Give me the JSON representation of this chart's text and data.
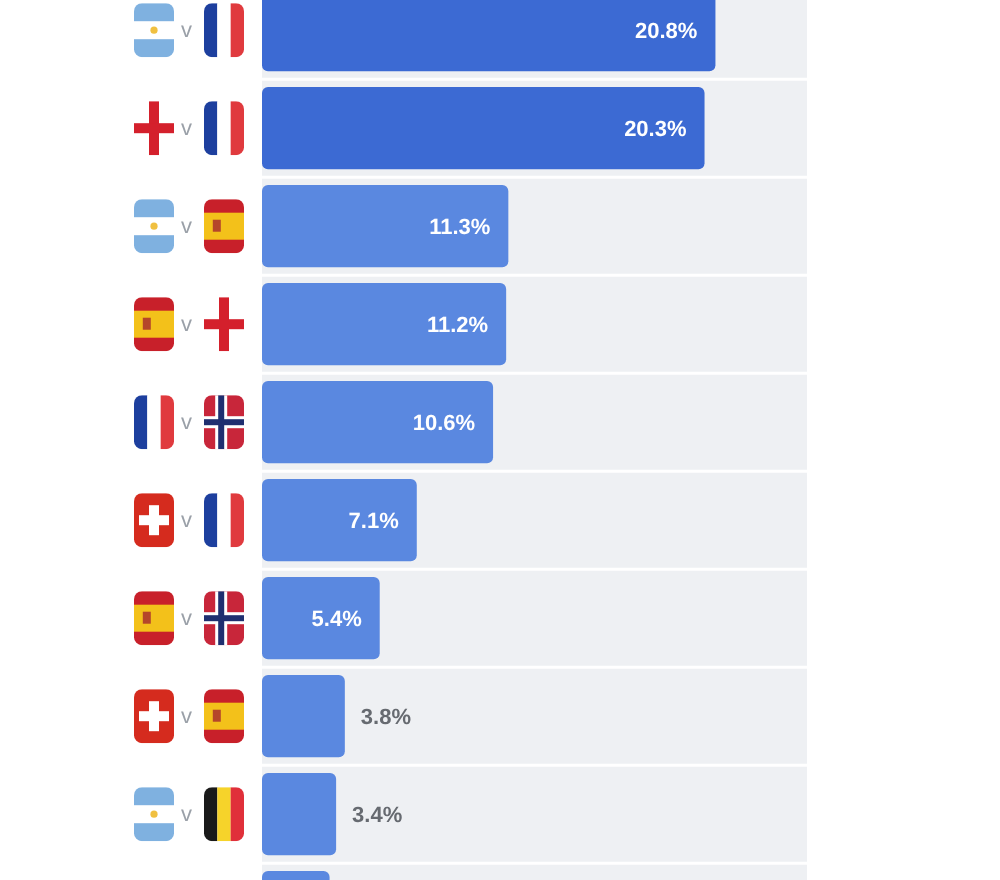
{
  "chart_data": {
    "type": "bar",
    "orientation": "horizontal",
    "categories": [
      "v",
      "v",
      "v",
      "v",
      "v",
      "v",
      "v",
      "v",
      "v",
      null
    ],
    "values": [
      20.8,
      20.3,
      11.3,
      11.2,
      10.6,
      7.1,
      5.4,
      3.8,
      3.4,
      3.1
    ],
    "colors": [
      "#3c6ad3",
      "#3c6ad3",
      "#5a88e0",
      "#5a88e0",
      "#5a88e0",
      "#5a88e0",
      "#5a88e0",
      "#5a88e0",
      "#5a88e0",
      "#5a88e0"
    ],
    "value_labels": [
      "20.8%",
      "20.3%",
      "11.3%",
      "11.2%",
      "10.6%",
      "7.1%",
      "5.4%",
      "3.8%",
      "3.4%",
      null
    ],
    "xlim": [
      0,
      25
    ],
    "tick_labels": "y"
  }
}
